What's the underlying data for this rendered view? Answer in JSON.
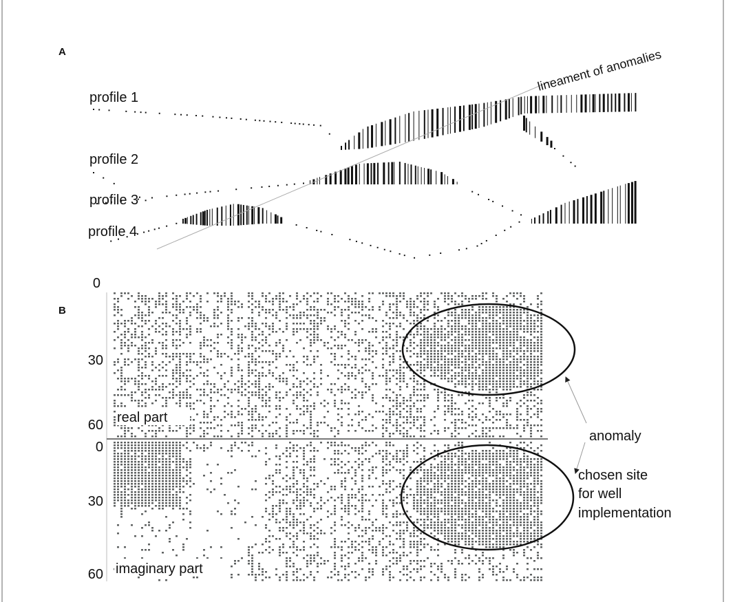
{
  "panel_a": {
    "label": "A",
    "lineament": "lineament of anomalies",
    "profiles": [
      "profile 1",
      "profile 2",
      "profile 3",
      "profile 4"
    ]
  },
  "panel_b": {
    "label": "B",
    "real": {
      "ticks": [
        0,
        30,
        60
      ],
      "caption": "real part"
    },
    "imaginary": {
      "ticks": [
        0,
        30,
        60
      ],
      "caption": "imaginary part"
    }
  },
  "annotations": {
    "anomaly": "anomaly",
    "chosen_site": [
      "chosen site",
      "for well",
      "implementation"
    ]
  }
}
